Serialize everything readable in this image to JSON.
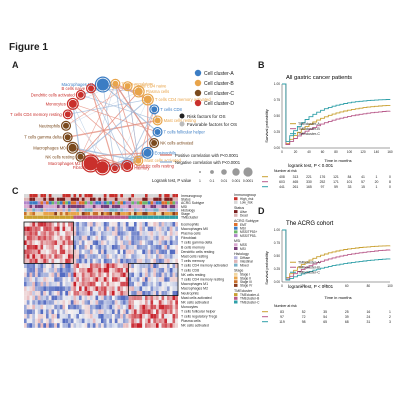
{
  "figure_title": "Figure 1",
  "panel_labels": [
    "A",
    "B",
    "C",
    "D"
  ],
  "panel_a": {
    "nodes": [
      "Macrophages M1",
      "T cells regulatory",
      "T cells CD4 naive",
      "Plasma cells",
      "T cells CD4 memory activated",
      "T cells CD8",
      "Mast cells resting",
      "T cells follicular helper",
      "NK cells activated",
      "Eosinophils",
      "Mast cells activated",
      "Dendritic cells resting",
      "B cells memory",
      "Fibroblasts",
      "Macrophages M2",
      "NK cells resting",
      "Macrophages M0",
      "T cells gamma delta",
      "Neutrophils",
      "T cells CD4 memory resting",
      "Monocytes",
      "Dendritic cells activated",
      "B cells naive"
    ],
    "legend_clusters": [
      "Cell cluster-A",
      "Cell cluster-B",
      "Cell cluster-C",
      "Cell cluster-D"
    ],
    "legend_factors": [
      "Risk factors for OS",
      "Favorable factors for OS"
    ],
    "legend_correlation": [
      "Positive correlation with P<0.0001",
      "Negative correlation with P<0.0001"
    ],
    "logrank_label": "Logrank test, P value",
    "pvalue_ticks": [
      "1",
      "0.1",
      "0.01",
      "0.001",
      "0.0001"
    ],
    "colors": {
      "cluster_a": "#3b7dc4",
      "cluster_b": "#e8a44a",
      "cluster_c": "#7a4a1e",
      "cluster_d": "#c9302c",
      "pos_edge": "#e48a7a",
      "neg_edge": "#9ab6d8"
    }
  },
  "panel_b": {
    "title": "All gastric cancer patients",
    "ylabel": "Survival probability",
    "xlabel": "Time in months",
    "legend": [
      "TMEcluster-A",
      "TMEcluster-B",
      "TMEcluster-C"
    ],
    "stat": "logrank test, P < 0.001",
    "risk_title": "Number at risk",
    "risk_rows": [
      [
        "408",
        "313",
        "221",
        "176",
        "121",
        "84",
        "41",
        "1",
        "0"
      ],
      [
        "603",
        "465",
        "330",
        "252",
        "171",
        "101",
        "57",
        "20",
        "8"
      ],
      [
        "441",
        "261",
        "165",
        "97",
        "59",
        "33",
        "15",
        "1",
        "0"
      ]
    ],
    "x_ticks": [
      "0",
      "20",
      "40",
      "60",
      "80",
      "100",
      "120",
      "140",
      "160"
    ],
    "y_ticks": [
      "0.00",
      "0.25",
      "0.50",
      "0.75",
      "1.00"
    ]
  },
  "panel_c": {
    "annotation_rows": [
      "Immunogroup",
      "Status",
      "ACRG Subtype",
      "MSI",
      "Histology",
      "Stage",
      "TMEcluster"
    ],
    "cell_rows": [
      "Eosinophils",
      "Macrophages M0",
      "Plasma cells",
      "Fibroblast",
      "T cells gamma delta",
      "B cells memory",
      "Dendritic cells resting",
      "Mast cells resting",
      "T cells memory",
      "T cells CD4 memory activated",
      "T cells CD8",
      "NK cells resting",
      "T cells CD4 memory resting",
      "Macrophages M1",
      "Macrophages M2",
      "Neutrophils",
      "Mast cells activated",
      "NK cells activated",
      "Monocytes",
      "T cells follicular helper",
      "T cells regulatory Tregs",
      "Plasma cells",
      "NK cells activated"
    ],
    "legend_groups": [
      {
        "title": "Immunogroup",
        "items": [
          "High_risk",
          "Low_risk"
        ]
      },
      {
        "title": "Status",
        "items": [
          "Alive",
          "Dead"
        ]
      },
      {
        "title": "ACRG Subtype",
        "items": [
          "EMT",
          "MSI",
          "MSS/TP53+",
          "MSS/TP53-"
        ]
      },
      {
        "title": "MSI",
        "items": [
          "MSS",
          "MSI"
        ]
      },
      {
        "title": "Histology",
        "items": [
          "Diffuse",
          "Intestinal",
          "Mixed"
        ]
      },
      {
        "title": "Stage",
        "items": [
          "Stage I",
          "Stage II",
          "Stage III",
          "Stage IV"
        ]
      },
      {
        "title": "TMEcluster",
        "items": [
          "TMEcluster-A",
          "TMEcluster-B",
          "TMEcluster-C"
        ]
      }
    ]
  },
  "panel_d": {
    "title": "The ACRG cohort",
    "ylabel": "Survival probability",
    "xlabel": "Time in months",
    "legend": [
      "TMEcluster-A",
      "TMEcluster-B",
      "TMEcluster-C"
    ],
    "stat": "logrank test, P < 0.001",
    "risk_title": "Number at risk",
    "risk_rows": [
      [
        "83",
        "52",
        "35",
        "25",
        "16",
        "1"
      ],
      [
        "97",
        "72",
        "54",
        "39",
        "24",
        "2"
      ],
      [
        "119",
        "98",
        "65",
        "68",
        "31",
        "3"
      ]
    ],
    "x_ticks": [
      "0",
      "20",
      "40",
      "60",
      "80",
      "100"
    ],
    "y_ticks": [
      "0.00",
      "0.25",
      "0.50",
      "0.75",
      "1.00"
    ]
  }
}
